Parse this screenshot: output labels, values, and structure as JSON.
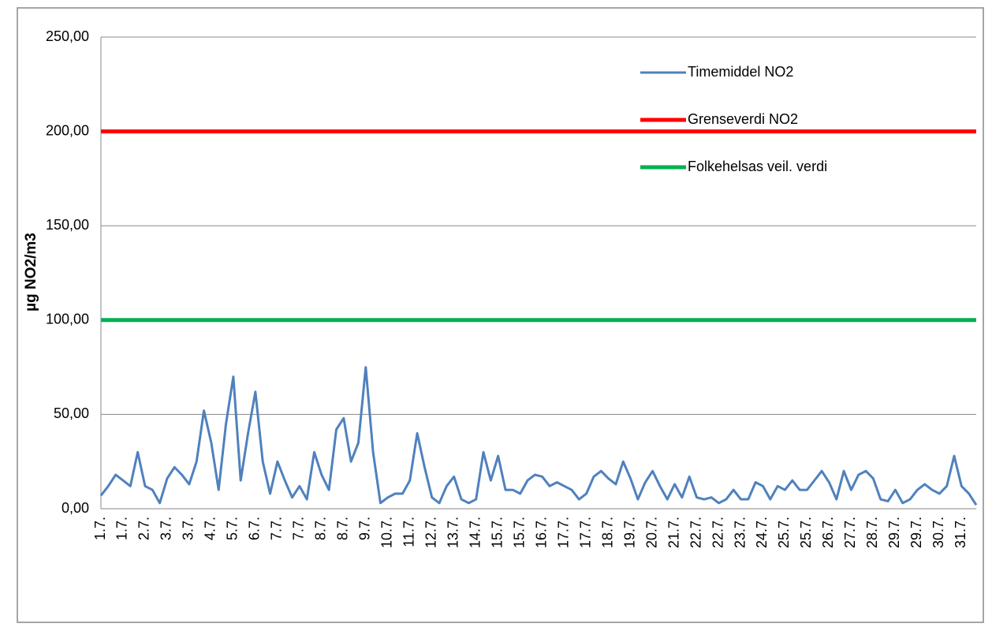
{
  "chart_data": {
    "type": "line",
    "ylabel": "µg NO2/m3",
    "categories": [
      "1.7.",
      null,
      null,
      "1.7.",
      null,
      null,
      "2.7.",
      null,
      null,
      "3.7.",
      null,
      null,
      "3.7.",
      null,
      null,
      "4.7.",
      null,
      null,
      "5.7.",
      null,
      null,
      "6.7.",
      null,
      null,
      "7.7.",
      null,
      null,
      "7.7.",
      null,
      null,
      "8.7.",
      null,
      null,
      "8.7.",
      null,
      null,
      "9.7.",
      null,
      null,
      "10.7.",
      null,
      null,
      "11.7.",
      null,
      null,
      "12.7.",
      null,
      null,
      "13.7.",
      null,
      null,
      "14.7.",
      null,
      null,
      "15.7.",
      null,
      null,
      "15.7.",
      null,
      null,
      "16.7.",
      null,
      null,
      "17.7.",
      null,
      null,
      "17.7.",
      null,
      null,
      "18.7.",
      null,
      null,
      "19.7.",
      null,
      null,
      "20.7.",
      null,
      null,
      "21.7.",
      null,
      null,
      "22.7.",
      null,
      null,
      "22.7.",
      null,
      null,
      "23.7.",
      null,
      null,
      "24.7.",
      null,
      null,
      "25.7.",
      null,
      null,
      "25.7.",
      null,
      null,
      "26.7.",
      null,
      null,
      "27.7.",
      null,
      null,
      "28.7.",
      null,
      null,
      "29.7.",
      null,
      null,
      "29.7.",
      null,
      null,
      "30.7.",
      null,
      null,
      "31.7.",
      null,
      null
    ],
    "series": [
      {
        "name": "Timemiddel NO2",
        "color": "#4f81bd",
        "width": 3,
        "values": [
          7,
          12,
          18,
          15,
          12,
          30,
          12,
          10,
          3,
          16,
          22,
          18,
          13,
          25,
          52,
          35,
          10,
          45,
          70,
          15,
          40,
          62,
          25,
          8,
          25,
          15,
          6,
          12,
          5,
          30,
          18,
          10,
          42,
          48,
          25,
          35,
          75,
          30,
          3,
          6,
          8,
          8,
          15,
          40,
          22,
          6,
          3,
          12,
          17,
          5,
          3,
          5,
          30,
          15,
          28,
          10,
          10,
          8,
          15,
          18,
          17,
          12,
          14,
          12,
          10,
          5,
          8,
          17,
          20,
          16,
          13,
          25,
          16,
          5,
          14,
          20,
          12,
          5,
          13,
          6,
          17,
          6,
          5,
          6,
          3,
          5,
          10,
          5,
          5,
          14,
          12,
          5,
          12,
          10,
          15,
          10,
          10,
          15,
          20,
          14,
          5,
          20,
          10,
          18,
          20,
          16,
          5,
          4,
          10,
          3,
          5,
          10,
          13,
          10,
          8,
          12,
          28,
          12,
          8,
          2
        ]
      },
      {
        "name": "Grenseverdi NO2",
        "color": "#ff0000",
        "width": 5,
        "values": [
          200,
          200,
          200,
          200,
          200,
          200,
          200,
          200,
          200,
          200,
          200,
          200,
          200,
          200,
          200,
          200,
          200,
          200,
          200,
          200,
          200,
          200,
          200,
          200,
          200,
          200,
          200,
          200,
          200,
          200,
          200,
          200,
          200,
          200,
          200,
          200,
          200,
          200,
          200,
          200,
          200,
          200,
          200,
          200,
          200,
          200,
          200,
          200,
          200,
          200,
          200,
          200,
          200,
          200,
          200,
          200,
          200,
          200,
          200,
          200,
          200,
          200,
          200,
          200,
          200,
          200,
          200,
          200,
          200,
          200,
          200,
          200,
          200,
          200,
          200,
          200,
          200,
          200,
          200,
          200,
          200,
          200,
          200,
          200,
          200,
          200,
          200,
          200,
          200,
          200,
          200,
          200,
          200,
          200,
          200,
          200,
          200,
          200,
          200,
          200,
          200,
          200,
          200,
          200,
          200,
          200,
          200,
          200,
          200,
          200,
          200,
          200,
          200,
          200,
          200,
          200,
          200,
          200,
          200,
          200
        ]
      },
      {
        "name": "Folkehelsas veil. verdi",
        "color": "#00b050",
        "width": 5,
        "values": [
          100,
          100,
          100,
          100,
          100,
          100,
          100,
          100,
          100,
          100,
          100,
          100,
          100,
          100,
          100,
          100,
          100,
          100,
          100,
          100,
          100,
          100,
          100,
          100,
          100,
          100,
          100,
          100,
          100,
          100,
          100,
          100,
          100,
          100,
          100,
          100,
          100,
          100,
          100,
          100,
          100,
          100,
          100,
          100,
          100,
          100,
          100,
          100,
          100,
          100,
          100,
          100,
          100,
          100,
          100,
          100,
          100,
          100,
          100,
          100,
          100,
          100,
          100,
          100,
          100,
          100,
          100,
          100,
          100,
          100,
          100,
          100,
          100,
          100,
          100,
          100,
          100,
          100,
          100,
          100,
          100,
          100,
          100,
          100,
          100,
          100,
          100,
          100,
          100,
          100,
          100,
          100,
          100,
          100,
          100,
          100,
          100,
          100,
          100,
          100,
          100,
          100,
          100,
          100,
          100,
          100,
          100,
          100,
          100,
          100,
          100,
          100,
          100,
          100,
          100,
          100,
          100,
          100,
          100,
          100
        ]
      }
    ],
    "ylim": [
      0,
      250
    ],
    "yticks": [
      {
        "value": 0,
        "label": "0,00"
      },
      {
        "value": 50,
        "label": "50,00"
      },
      {
        "value": 100,
        "label": "100,00"
      },
      {
        "value": 150,
        "label": "150,00"
      },
      {
        "value": 200,
        "label": "200,00"
      },
      {
        "value": 250,
        "label": "250,00"
      }
    ],
    "grid": true,
    "legend": "top-right"
  }
}
